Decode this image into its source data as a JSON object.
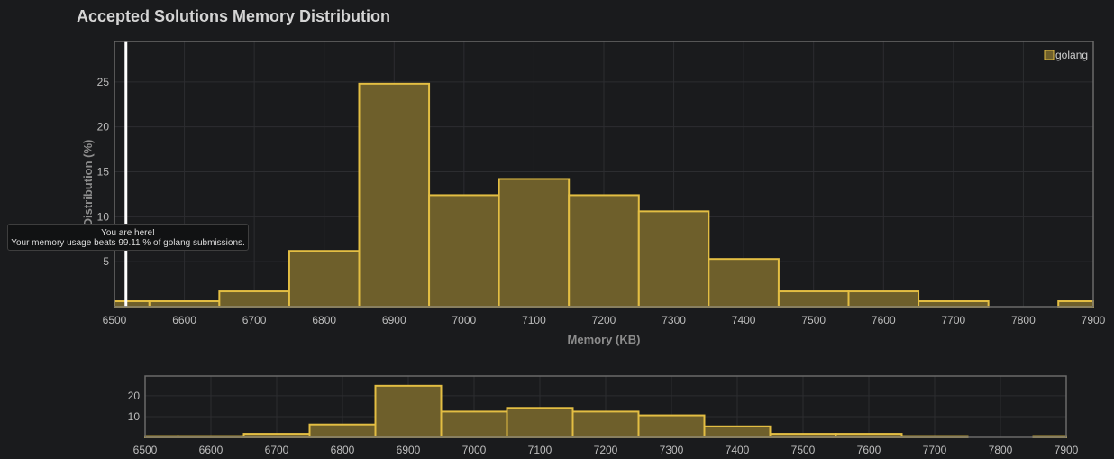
{
  "title": "Accepted Solutions Memory Distribution",
  "tooltip": {
    "line1": "You are here!",
    "line2": "Your memory usage beats 99.11 % of golang submissions."
  },
  "colors": {
    "bar_fill": "#6e5f2b",
    "bar_stroke": "#e3be43",
    "marker": "#ffffff",
    "grid": "#2c2d30",
    "frame": "#6a6a6a"
  },
  "chart_data": [
    {
      "type": "bar",
      "xlabel": "Memory (KB)",
      "ylabel": "Distribution (%)",
      "legend": {
        "entries": [
          "golang"
        ],
        "placement": "top-right"
      },
      "grid": true,
      "xlim": [
        6500,
        7900
      ],
      "ylim": [
        0,
        29.5
      ],
      "x_ticks": [
        6500,
        6600,
        6700,
        6800,
        6900,
        7000,
        7100,
        7200,
        7300,
        7400,
        7500,
        7600,
        7700,
        7800,
        7900
      ],
      "y_ticks": [
        5,
        10,
        15,
        20,
        25
      ],
      "bin_width": 100,
      "x": [
        6500,
        6600,
        6700,
        6800,
        6900,
        7000,
        7100,
        7200,
        7300,
        7400,
        7500,
        7600,
        7700,
        7800,
        7900
      ],
      "series": [
        {
          "name": "golang",
          "values": [
            0.6,
            0.6,
            1.7,
            6.2,
            24.8,
            12.4,
            14.2,
            12.4,
            10.6,
            5.3,
            1.7,
            1.7,
            0.6,
            0.0,
            0.6
          ]
        }
      ],
      "marker_x": 6510
    },
    {
      "type": "bar",
      "xlim": [
        6500,
        7900
      ],
      "ylim": [
        0,
        29.5
      ],
      "grid": true,
      "x_ticks": [
        6500,
        6600,
        6700,
        6800,
        6900,
        7000,
        7100,
        7200,
        7300,
        7400,
        7500,
        7600,
        7700,
        7800,
        7900
      ],
      "y_ticks": [
        10,
        20
      ],
      "bin_width": 100,
      "x": [
        6500,
        6600,
        6700,
        6800,
        6900,
        7000,
        7100,
        7200,
        7300,
        7400,
        7500,
        7600,
        7700,
        7800,
        7900
      ],
      "series": [
        {
          "values": [
            0.6,
            0.6,
            1.7,
            6.2,
            24.8,
            12.4,
            14.2,
            12.4,
            10.6,
            5.3,
            1.7,
            1.7,
            0.6,
            0.0,
            0.6
          ]
        }
      ]
    }
  ]
}
